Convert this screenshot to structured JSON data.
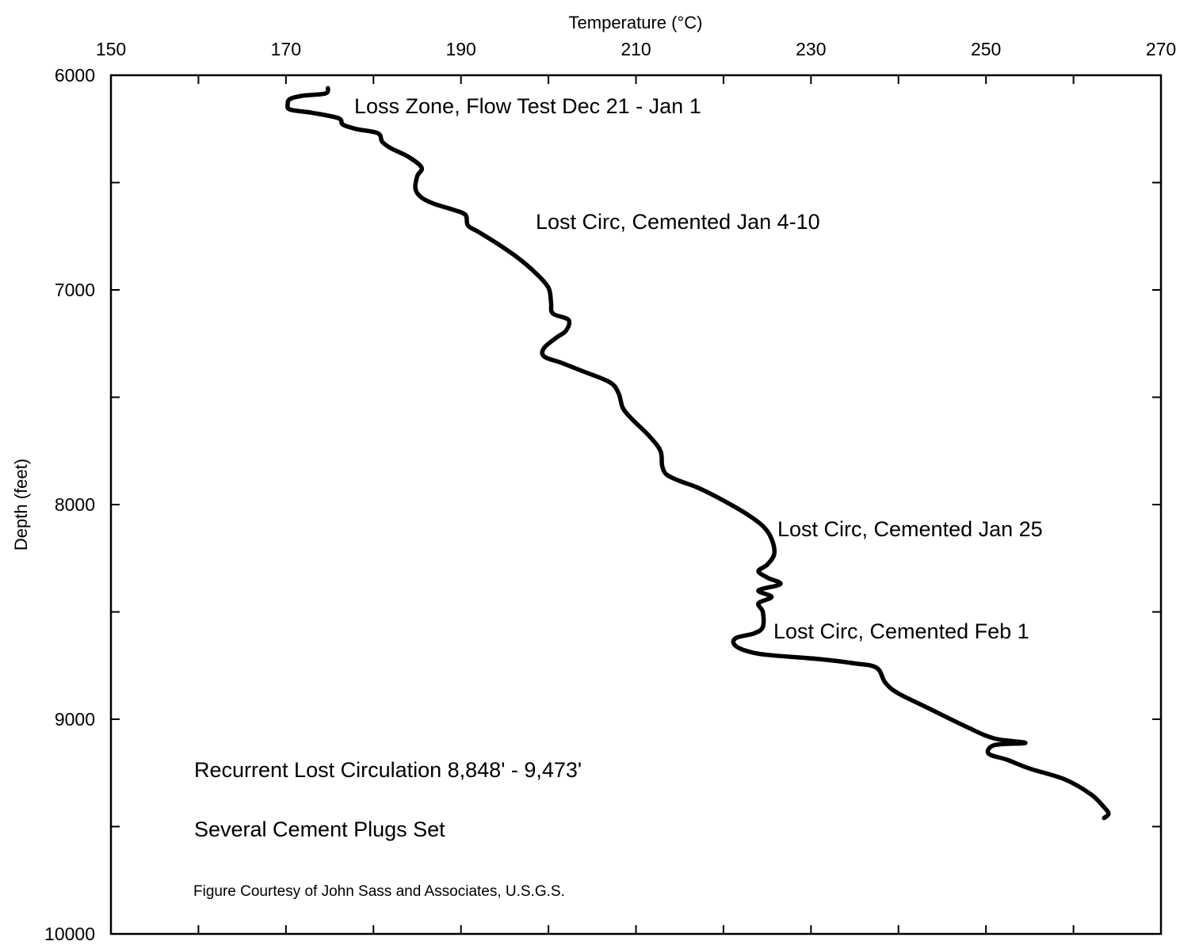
{
  "chart_data": {
    "type": "line",
    "title": "",
    "xlabel": "Temperature (°C)",
    "ylabel": "Depth (feet)",
    "x_axis_position": "top",
    "y_axis_inverted": true,
    "xlim": [
      150,
      270
    ],
    "ylim": [
      6000,
      10000
    ],
    "x_ticks": [
      "150",
      "170",
      "190",
      "210",
      "230",
      "250",
      "270"
    ],
    "y_ticks": [
      "6000",
      "7000",
      "8000",
      "9000",
      "10000"
    ],
    "grid": false,
    "series": [
      {
        "points": [
          [
            174.8,
            6060
          ],
          [
            174.5,
            6085
          ],
          [
            172,
            6095
          ],
          [
            170.5,
            6110
          ],
          [
            170.2,
            6135
          ],
          [
            170.5,
            6160
          ],
          [
            173,
            6175
          ],
          [
            176,
            6200
          ],
          [
            176.5,
            6230
          ],
          [
            178,
            6250
          ],
          [
            180.5,
            6270
          ],
          [
            181,
            6310
          ],
          [
            182,
            6340
          ],
          [
            184,
            6380
          ],
          [
            185.5,
            6430
          ],
          [
            185,
            6470
          ],
          [
            184.8,
            6530
          ],
          [
            185.5,
            6570
          ],
          [
            187,
            6600
          ],
          [
            189,
            6625
          ],
          [
            190.5,
            6650
          ],
          [
            190.8,
            6700
          ],
          [
            192,
            6730
          ],
          [
            194,
            6780
          ],
          [
            196.5,
            6850
          ],
          [
            198.5,
            6920
          ],
          [
            200,
            6990
          ],
          [
            200.3,
            7060
          ],
          [
            200.5,
            7110
          ],
          [
            202.3,
            7140
          ],
          [
            202,
            7190
          ],
          [
            201,
            7220
          ],
          [
            199.5,
            7270
          ],
          [
            199.5,
            7310
          ],
          [
            201.5,
            7340
          ],
          [
            204,
            7380
          ],
          [
            207,
            7430
          ],
          [
            208,
            7480
          ],
          [
            208.5,
            7550
          ],
          [
            209.5,
            7600
          ],
          [
            211.5,
            7680
          ],
          [
            212.8,
            7750
          ],
          [
            213,
            7820
          ],
          [
            213.5,
            7860
          ],
          [
            215,
            7890
          ],
          [
            217,
            7920
          ],
          [
            219.5,
            7970
          ],
          [
            222.5,
            8040
          ],
          [
            224.5,
            8100
          ],
          [
            225.5,
            8160
          ],
          [
            225.8,
            8230
          ],
          [
            225,
            8280
          ],
          [
            224,
            8310
          ],
          [
            225,
            8340
          ],
          [
            226.5,
            8370
          ],
          [
            224,
            8400
          ],
          [
            225.5,
            8430
          ],
          [
            224,
            8460
          ],
          [
            224.5,
            8500
          ],
          [
            224.5,
            8570
          ],
          [
            223.5,
            8600
          ],
          [
            221.5,
            8620
          ],
          [
            221.2,
            8650
          ],
          [
            222.5,
            8680
          ],
          [
            225,
            8700
          ],
          [
            231,
            8720
          ],
          [
            235,
            8740
          ],
          [
            237.5,
            8760
          ],
          [
            238.5,
            8830
          ],
          [
            240,
            8880
          ],
          [
            243.5,
            8950
          ],
          [
            248,
            9040
          ],
          [
            251,
            9090
          ],
          [
            254.5,
            9110
          ],
          [
            251,
            9120
          ],
          [
            250.3,
            9160
          ],
          [
            252.5,
            9190
          ],
          [
            255,
            9230
          ],
          [
            259,
            9280
          ],
          [
            262,
            9350
          ],
          [
            263.5,
            9410
          ],
          [
            264,
            9440
          ],
          [
            263.5,
            9460
          ]
        ]
      }
    ],
    "annotations": [
      "Loss Zone, Flow Test Dec 21 - Jan 1",
      "Lost Circ, Cemented Jan 4-10",
      "Lost Circ, Cemented Jan 25",
      "Lost Circ, Cemented Feb 1",
      "Recurrent Lost Circulation 8,848' - 9,473'",
      "Several Cement Plugs Set",
      "Figure Courtesy of John Sass and Associates, U.S.G.S."
    ]
  }
}
